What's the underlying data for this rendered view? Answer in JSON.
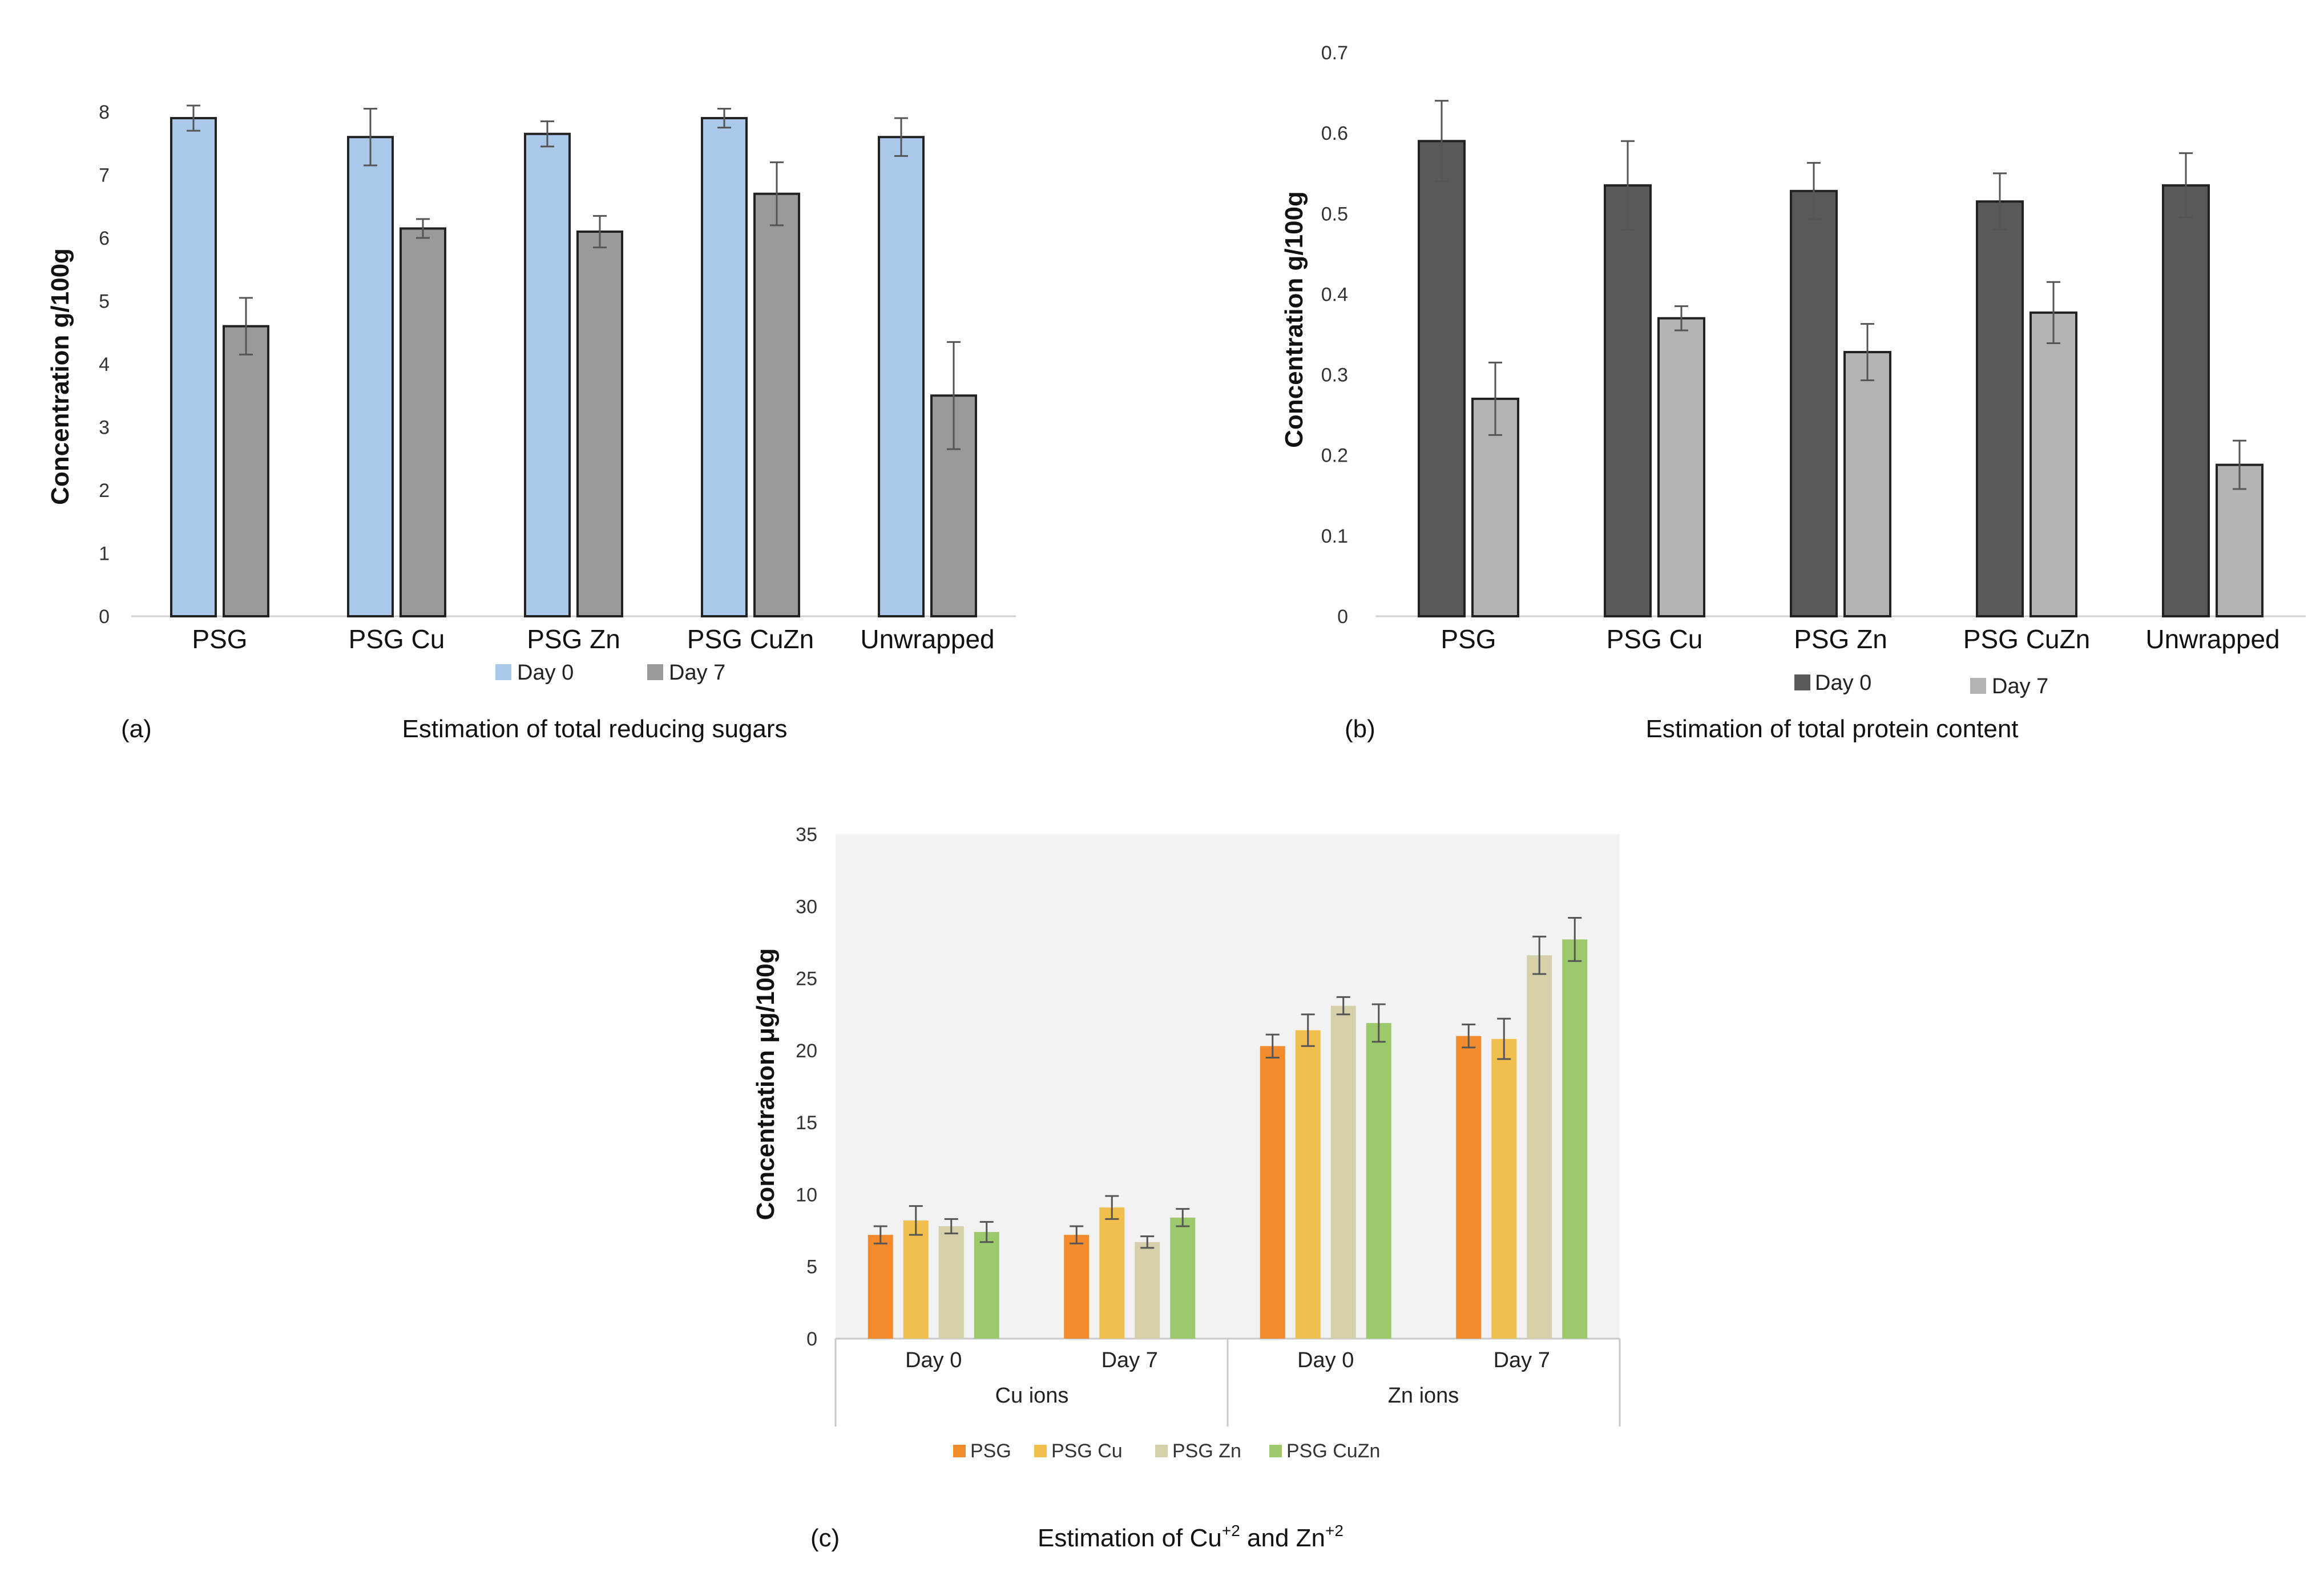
{
  "panels": [
    {
      "label": "(a)",
      "caption": "Estimation of total reducing sugars",
      "chart_data": {
        "type": "bar",
        "title": "Estimation of total reducing sugars",
        "ylabel": "Concentration g/100g",
        "ylim": [
          0,
          8
        ],
        "yticks": [
          0,
          1,
          2,
          3,
          4,
          5,
          6,
          7,
          8
        ],
        "categories": [
          "PSG",
          "PSG Cu",
          "PSG Zn",
          "PSG CuZn",
          "Unwrapped"
        ],
        "series": [
          {
            "name": "Day 0",
            "color": "#a9c8ea",
            "values": [
              7.9,
              7.6,
              7.65,
              7.9,
              7.6
            ],
            "errors": [
              0.2,
              0.45,
              0.2,
              0.15,
              0.3
            ]
          },
          {
            "name": "Day 7",
            "color": "#9a9a9a",
            "values": [
              4.6,
              6.15,
              6.1,
              6.7,
              3.5
            ],
            "errors": [
              0.45,
              0.15,
              0.25,
              0.5,
              0.85
            ]
          }
        ],
        "legend": "bottom",
        "grid": false
      }
    },
    {
      "label": "(b)",
      "caption": "Estimation of total protein content",
      "chart_data": {
        "type": "bar",
        "title": "Estimation of total protein content",
        "ylabel": "Concentration g/100g",
        "ylim": [
          0,
          0.7
        ],
        "yticks": [
          0,
          0.1,
          0.2,
          0.3,
          0.4,
          0.5,
          0.6,
          0.7
        ],
        "categories": [
          "PSG",
          "PSG Cu",
          "PSG Zn",
          "PSG CuZn",
          "Unwrapped"
        ],
        "series": [
          {
            "name": "Day 0",
            "color": "#595959",
            "values": [
              0.59,
              0.535,
              0.528,
              0.515,
              0.535
            ],
            "errors": [
              0.05,
              0.055,
              0.035,
              0.035,
              0.04
            ]
          },
          {
            "name": "Day 7",
            "color": "#b3b3b3",
            "values": [
              0.27,
              0.37,
              0.328,
              0.377,
              0.188
            ],
            "errors": [
              0.045,
              0.015,
              0.035,
              0.038,
              0.03
            ]
          }
        ],
        "legend": "bottom",
        "grid": false
      }
    },
    {
      "label": "(c)",
      "caption_main": "Estimation of Cu",
      "caption_sup1": "+2",
      "caption_mid": " and Zn",
      "caption_sup2": "+2",
      "chart_data": {
        "type": "bar",
        "ylabel": "Concentration μg/100g",
        "ylim": [
          0,
          35
        ],
        "yticks": [
          0,
          5,
          10,
          15,
          20,
          25,
          30,
          35
        ],
        "categories": [
          "Day 0",
          "Day 7",
          "Day 0",
          "Day 7"
        ],
        "groups": [
          {
            "label": "Cu ions",
            "span": [
              0,
              1
            ]
          },
          {
            "label": "Zn ions",
            "span": [
              2,
              3
            ]
          }
        ],
        "series": [
          {
            "name": "PSG",
            "color": "#f28a2e",
            "values": [
              7.2,
              7.2,
              20.3,
              21.0
            ],
            "errors": [
              0.6,
              0.6,
              0.8,
              0.8
            ]
          },
          {
            "name": "PSG Cu",
            "color": "#f2bf4e",
            "values": [
              8.2,
              9.1,
              21.4,
              20.8
            ],
            "errors": [
              1.0,
              0.8,
              1.1,
              1.4
            ]
          },
          {
            "name": "PSG Zn",
            "color": "#d6d0aa",
            "values": [
              7.8,
              6.7,
              23.1,
              26.6
            ],
            "errors": [
              0.5,
              0.4,
              0.6,
              1.3
            ]
          },
          {
            "name": "PSG CuZn",
            "color": "#9cc96b",
            "values": [
              7.4,
              8.4,
              21.9,
              27.7
            ],
            "errors": [
              0.7,
              0.6,
              1.3,
              1.5
            ]
          }
        ],
        "plot_background": "#f2f2f2",
        "legend": "bottom",
        "grid": false
      }
    }
  ]
}
